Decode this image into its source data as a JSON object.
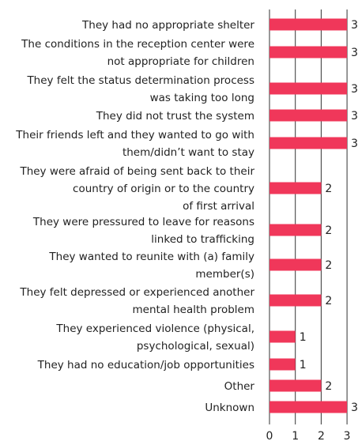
{
  "chart_data": {
    "type": "bar",
    "orientation": "horizontal",
    "title": "",
    "xlabel": "",
    "ylabel": "",
    "xlim": [
      0,
      3
    ],
    "x_ticks": [
      "0",
      "1",
      "2",
      "3"
    ],
    "grid": "vertical",
    "bar_color": "#f0375a",
    "categories": [
      [
        "They had no appropriate shelter"
      ],
      [
        "The conditions in the reception center were",
        "not appropriate for children"
      ],
      [
        "They felt the status determination process",
        "was taking too long"
      ],
      [
        "They did not trust the system"
      ],
      [
        "Their friends left and they wanted to go with",
        "them/didn’t want to stay"
      ],
      [
        "They were afraid of being sent back to their",
        "country of origin or to the country",
        "of first arrival"
      ],
      [
        "They were pressured to leave for reasons",
        "linked to trafficking"
      ],
      [
        "They wanted to reunite with (a) family",
        "member(s)"
      ],
      [
        "They felt depressed or experienced another",
        "mental health problem"
      ],
      [
        "They experienced violence (physical,",
        "psychological, sexual)"
      ],
      [
        "They had no education/job opportunities"
      ],
      [
        "Other"
      ],
      [
        "Unknown"
      ]
    ],
    "values": [
      3,
      3,
      3,
      3,
      3,
      2,
      2,
      2,
      2,
      1,
      1,
      2,
      3
    ],
    "value_labels": [
      "3",
      "3",
      "3",
      "3",
      "3",
      "2",
      "2",
      "2",
      "2",
      "1",
      "1",
      "2",
      "3"
    ]
  }
}
